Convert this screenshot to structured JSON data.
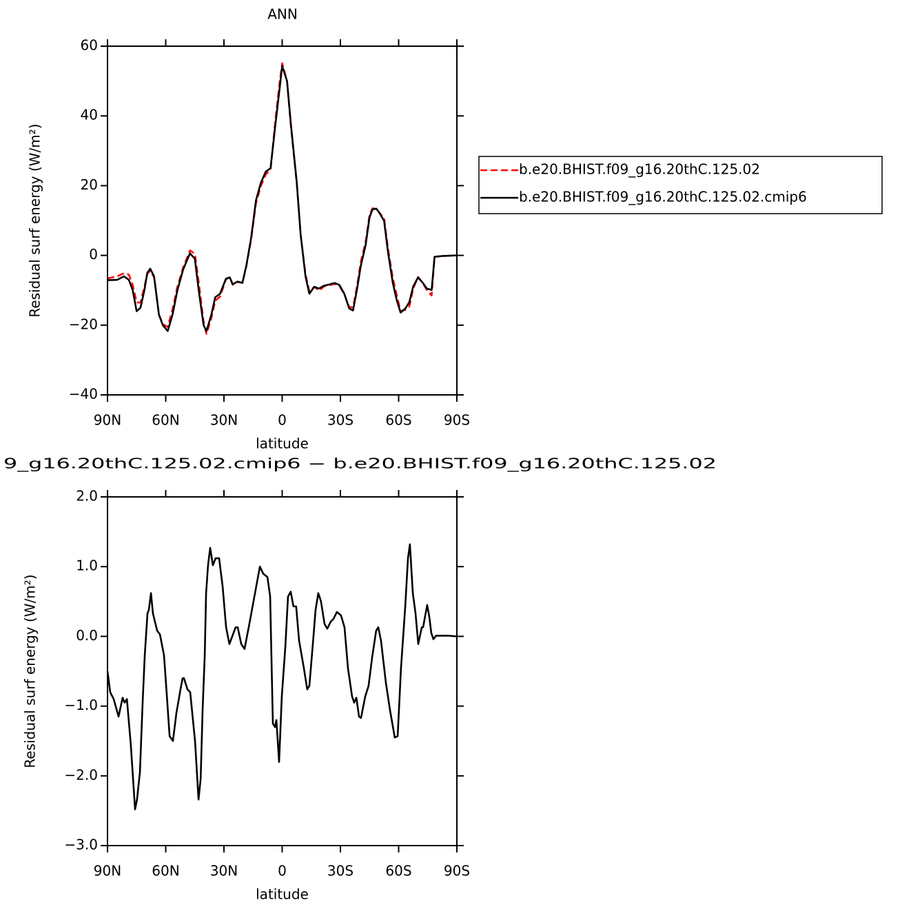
{
  "chart_data": [
    {
      "type": "line",
      "title": "ANN",
      "xlabel": "latitude",
      "ylabel": "Residual surf energy (W/m²)",
      "xlim": [
        90,
        -90
      ],
      "ylim": [
        -40,
        60
      ],
      "xticks": [
        {
          "value": 90,
          "label": "90N"
        },
        {
          "value": 60,
          "label": "60N"
        },
        {
          "value": 30,
          "label": "30N"
        },
        0,
        {
          "value": -30,
          "label": "30S"
        },
        {
          "value": -60,
          "label": "60S"
        },
        {
          "value": -90,
          "label": "90S"
        }
      ],
      "yticks": [
        60,
        40,
        20,
        0,
        {
          "value": -20,
          "label": "−20"
        },
        {
          "value": -40,
          "label": "−40"
        }
      ],
      "legend": "right",
      "x": [
        90,
        85,
        81.5,
        79,
        77,
        75,
        73,
        71,
        69.5,
        68,
        66,
        63.5,
        61.5,
        59,
        56.5,
        54,
        51,
        47.5,
        45,
        43,
        40.5,
        39,
        36.5,
        34.5,
        32,
        29,
        27,
        25.5,
        23,
        20.5,
        18.5,
        16,
        13.5,
        11,
        8.5,
        6,
        3.5,
        1.5,
        0,
        -2.5,
        -4.5,
        -7.5,
        -9.5,
        -12,
        -14,
        -16.5,
        -19,
        -21.5,
        -24.5,
        -27,
        -29.5,
        -32,
        -34.5,
        -36.5,
        -38.5,
        -40.5,
        -43,
        -45,
        -46.5,
        -48.5,
        -50,
        -52.5,
        -54.5,
        -57,
        -59,
        -61,
        -63.5,
        -65.5,
        -67.5,
        -70,
        -72.5,
        -74.5,
        -77,
        -78.5,
        -82,
        -90
      ],
      "series": [
        {
          "name": "b.e20.BHIST.f09_g16.20thC.125.02",
          "color": "#ff0000",
          "line_style": "dashed",
          "values": [
            -6.6,
            -6,
            -5.1,
            -5.5,
            -8.5,
            -13.5,
            -13.5,
            -9,
            -5.3,
            -4.4,
            -6.3,
            -17,
            -19.7,
            -20.5,
            -15.5,
            -9,
            -3.4,
            1.4,
            0.5,
            -7.7,
            -19,
            -22.5,
            -18,
            -13,
            -11.8,
            -6.9,
            -6.2,
            -8.4,
            -7.6,
            -7.8,
            -3.2,
            4.5,
            15,
            19.9,
            23.2,
            24.5,
            38.8,
            48.8,
            55.1,
            50,
            36.9,
            20.6,
            6,
            -5.4,
            -10.3,
            -9,
            -10.1,
            -8.9,
            -8.5,
            -8.2,
            -8.8,
            -11.1,
            -14.8,
            -14.9,
            -9,
            -1.8,
            3.9,
            11.6,
            13.5,
            13.3,
            12.3,
            10.6,
            2,
            -6.5,
            -11.4,
            -16,
            -15.6,
            -14.7,
            -9.5,
            -6.2,
            -8,
            -9.9,
            -11.5,
            -0.4,
            -0.2,
            0
          ]
        },
        {
          "name": "b.e20.BHIST.f09_g16.20thC.125.02.cmip6",
          "color": "#000000",
          "line_style": "solid",
          "values": [
            -7.1,
            -7,
            -6,
            -7,
            -10,
            -16,
            -15,
            -10,
            -5,
            -3.8,
            -6,
            -17,
            -20,
            -21.7,
            -17,
            -10,
            -4,
            0.6,
            -1,
            -10,
            -20,
            -21.7,
            -17,
            -12,
            -11,
            -6.7,
            -6.3,
            -8.3,
            -7.5,
            -7.9,
            -3,
            5,
            15.8,
            20.8,
            24,
            25,
            37.5,
            47,
            54.3,
            50,
            37.5,
            21,
            6,
            -6,
            -11,
            -9,
            -9.5,
            -8.7,
            -8.3,
            -7.9,
            -8.5,
            -11,
            -15.2,
            -15.8,
            -9.9,
            -3,
            3,
            10.9,
            13.2,
            13.4,
            12.3,
            9.9,
            1,
            -7.9,
            -12.8,
            -16.4,
            -15.2,
            -13.4,
            -8.9,
            -6.3,
            -7.9,
            -9.5,
            -9.9,
            -0.4,
            -0.2,
            0
          ]
        }
      ]
    },
    {
      "type": "line",
      "title": "9_g16.20thC.125.02.cmip6 − b.e20.BHIST.f09_g16.20thC.125.02",
      "xlabel": "latitude",
      "ylabel": "Residual surf energy (W/m²)",
      "xlim": [
        90,
        -90
      ],
      "ylim": [
        -3,
        2
      ],
      "xticks": [
        {
          "value": 90,
          "label": "90N"
        },
        {
          "value": 60,
          "label": "60N"
        },
        {
          "value": 30,
          "label": "30N"
        },
        0,
        {
          "value": -30,
          "label": "30S"
        },
        {
          "value": -60,
          "label": "60S"
        },
        {
          "value": -90,
          "label": "90S"
        }
      ],
      "yticks": [
        {
          "value": 2,
          "label": "2.0"
        },
        {
          "value": 1,
          "label": "1.0"
        },
        {
          "value": 0,
          "label": "0.0"
        },
        {
          "value": -1,
          "label": "−1.0"
        },
        {
          "value": -2,
          "label": "−2.0"
        },
        {
          "value": -3,
          "label": "−3.0"
        }
      ],
      "x": [
        90,
        88.6,
        86.8,
        84.3,
        82.2,
        81.2,
        80,
        78,
        75.8,
        74.8,
        73.3,
        71.9,
        70.8,
        69.4,
        68.7,
        67.6,
        66.6,
        64.4,
        63,
        60.9,
        59.9,
        58,
        56.3,
        54.5,
        52.4,
        51.3,
        50.6,
        48.8,
        47.4,
        44.9,
        43.1,
        42,
        41,
        39.9,
        39.2,
        38.2,
        37.1,
        35.7,
        34.3,
        32.5,
        30.7,
        28.9,
        27.2,
        24,
        22.9,
        21.1,
        19.4,
        16.9,
        14,
        11.5,
        9.8,
        7.6,
        6.2,
        4.8,
        3.7,
        3,
        1.6,
        0.2,
        -1.6,
        -3,
        -4.4,
        -5.8,
        -7.2,
        -8.7,
        -11.2,
        -12.9,
        -14,
        -15.8,
        -17.2,
        -18.6,
        -20,
        -21.8,
        -23.2,
        -25,
        -26.4,
        -28.2,
        -30.3,
        -32.1,
        -33.9,
        -36,
        -37.1,
        -38.2,
        -39.6,
        -40.6,
        -42.8,
        -44.5,
        -46.3,
        -48.4,
        -49.5,
        -50.9,
        -53.4,
        -55.5,
        -58,
        -59.5,
        -61.2,
        -63.4,
        -64.8,
        -65.8,
        -67.3,
        -68.7,
        -70.1,
        -71.9,
        -72.6,
        -74.7,
        -75.8,
        -76.8,
        -77.9,
        -79.3,
        -85.4,
        -90
      ],
      "color": "#000000",
      "values": [
        -0.5,
        -0.8,
        -0.9,
        -1.15,
        -0.88,
        -0.95,
        -0.9,
        -1.55,
        -2.48,
        -2.34,
        -1.95,
        -0.95,
        -0.27,
        0.33,
        0.38,
        0.62,
        0.33,
        0.08,
        0.03,
        -0.27,
        -0.66,
        -1.43,
        -1.5,
        -1.1,
        -0.76,
        -0.6,
        -0.6,
        -0.76,
        -0.8,
        -1.5,
        -2.34,
        -2.04,
        -1.05,
        -0.27,
        0.62,
        1.02,
        1.27,
        1.02,
        1.12,
        1.12,
        0.72,
        0.13,
        -0.11,
        0.13,
        0.13,
        -0.11,
        -0.18,
        0.18,
        0.62,
        1.0,
        0.9,
        0.85,
        0.57,
        -1.25,
        -1.3,
        -1.2,
        -1.8,
        -0.86,
        -0.16,
        0.57,
        0.64,
        0.43,
        0.43,
        -0.06,
        -0.46,
        -0.76,
        -0.71,
        -0.11,
        0.38,
        0.62,
        0.5,
        0.18,
        0.11,
        0.21,
        0.25,
        0.35,
        0.3,
        0.13,
        -0.46,
        -0.86,
        -0.95,
        -0.88,
        -1.15,
        -1.17,
        -0.86,
        -0.71,
        -0.31,
        0.08,
        0.13,
        -0.06,
        -0.66,
        -1.05,
        -1.45,
        -1.43,
        -0.46,
        0.43,
        1.12,
        1.32,
        0.62,
        0.33,
        -0.11,
        0.13,
        0.13,
        0.45,
        0.28,
        0.05,
        -0.04,
        0.01,
        0.01,
        0
      ]
    }
  ]
}
